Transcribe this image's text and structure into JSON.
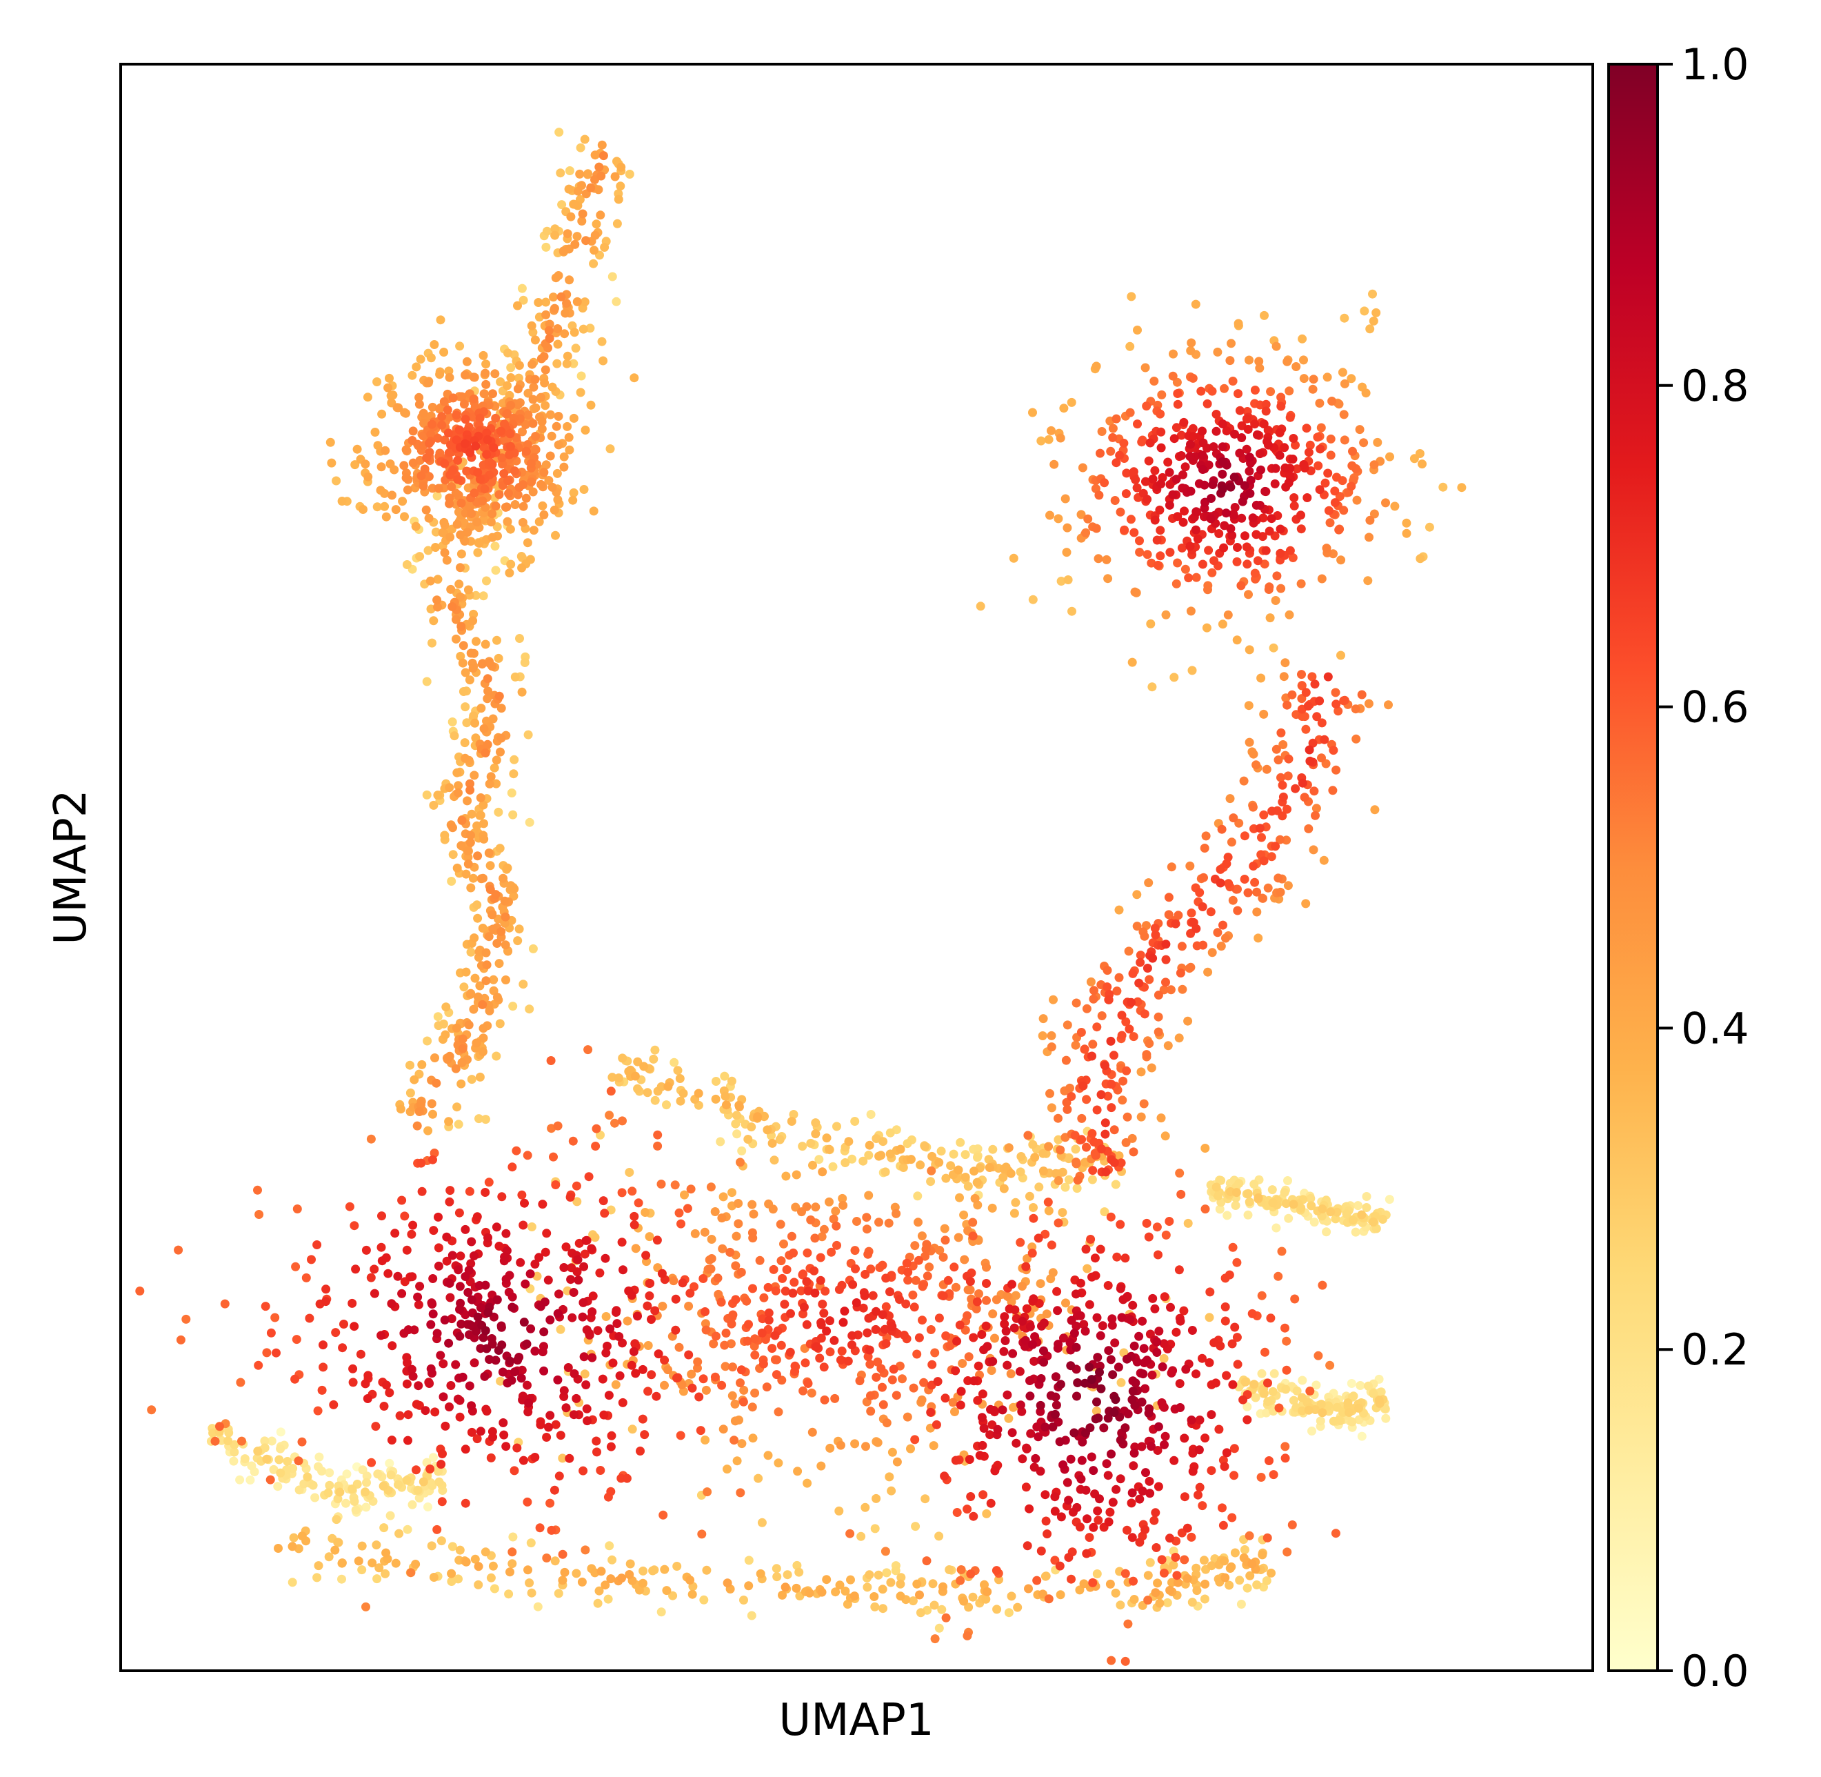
{
  "chart_data": {
    "type": "scatter",
    "subtype": "umap_embedding",
    "title": "",
    "xlabel": "UMAP1",
    "ylabel": "UMAP2",
    "x_ticks": [],
    "y_ticks": [],
    "xlim": [
      0,
      100
    ],
    "ylim": [
      0,
      100
    ],
    "grid": false,
    "legend": "none",
    "colorbar": {
      "colormap": "YlOrRd",
      "range": [
        0.0,
        1.0
      ],
      "ticks": [
        0.0,
        0.2,
        0.4,
        0.6,
        0.8,
        1.0
      ],
      "tick_labels": [
        "0.0",
        "0.2",
        "0.4",
        "0.6",
        "0.8",
        "1.0"
      ],
      "stops": [
        "#ffffcc",
        "#ffeda0",
        "#fed976",
        "#feb24c",
        "#fd8d3c",
        "#fc4e2a",
        "#e31a1c",
        "#bd0026",
        "#800026"
      ]
    },
    "clusters": [
      {
        "name": "upper-left branch",
        "path": [
          [
            33,
            95
          ],
          [
            31,
            88
          ],
          [
            28,
            80
          ],
          [
            24,
            74
          ],
          [
            22,
            67
          ],
          [
            26,
            60
          ],
          [
            23,
            53
          ],
          [
            26,
            47
          ],
          [
            24,
            40
          ],
          [
            20,
            34
          ]
        ],
        "width": 2.0,
        "value_range": [
          0.25,
          0.6
        ]
      },
      {
        "name": "upper-left head",
        "center": [
          24,
          76
        ],
        "spread": [
          5,
          4
        ],
        "value_range": [
          0.35,
          0.65
        ]
      },
      {
        "name": "upper-right blob",
        "center": [
          75,
          74
        ],
        "spread": [
          8,
          6
        ],
        "value_range": [
          0.35,
          0.95
        ]
      },
      {
        "name": "right arm",
        "path": [
          [
            82,
            62
          ],
          [
            80,
            55
          ],
          [
            75,
            49
          ],
          [
            69,
            43
          ],
          [
            66,
            37
          ],
          [
            67,
            31
          ]
        ],
        "width": 3.5,
        "value_range": [
          0.4,
          0.8
        ]
      },
      {
        "name": "bottom-left mass",
        "center": [
          26,
          21
        ],
        "spread": [
          11,
          8
        ],
        "value_range": [
          0.55,
          0.95
        ]
      },
      {
        "name": "bottom-middle region",
        "center": [
          49,
          22
        ],
        "spread": [
          12,
          7
        ],
        "value_range": [
          0.3,
          0.75
        ]
      },
      {
        "name": "bottom-right mass",
        "center": [
          66,
          17
        ],
        "spread": [
          9,
          8
        ],
        "value_range": [
          0.55,
          1.0
        ]
      },
      {
        "name": "bottom-left tail",
        "path": [
          [
            22,
            12
          ],
          [
            15,
            11
          ],
          [
            6,
            15
          ]
        ],
        "width": 1.2,
        "value_range": [
          0.05,
          0.35
        ]
      },
      {
        "name": "bottom-right tail",
        "path": [
          [
            76,
            18
          ],
          [
            82,
            16
          ],
          [
            86,
            17
          ]
        ],
        "width": 1.0,
        "value_range": [
          0.1,
          0.35
        ]
      },
      {
        "name": "right upper tail",
        "path": [
          [
            74,
            30
          ],
          [
            80,
            29
          ],
          [
            86,
            28
          ]
        ],
        "width": 0.9,
        "value_range": [
          0.1,
          0.35
        ]
      },
      {
        "name": "bottom rim",
        "path": [
          [
            10,
            8
          ],
          [
            30,
            6
          ],
          [
            50,
            5
          ],
          [
            70,
            5
          ],
          [
            78,
            7
          ]
        ],
        "width": 1.5,
        "value_range": [
          0.2,
          0.5
        ]
      },
      {
        "name": "upper middle rim",
        "path": [
          [
            33,
            38
          ],
          [
            45,
            34
          ],
          [
            58,
            31
          ],
          [
            68,
            32
          ]
        ],
        "width": 1.4,
        "value_range": [
          0.2,
          0.45
        ]
      }
    ]
  }
}
